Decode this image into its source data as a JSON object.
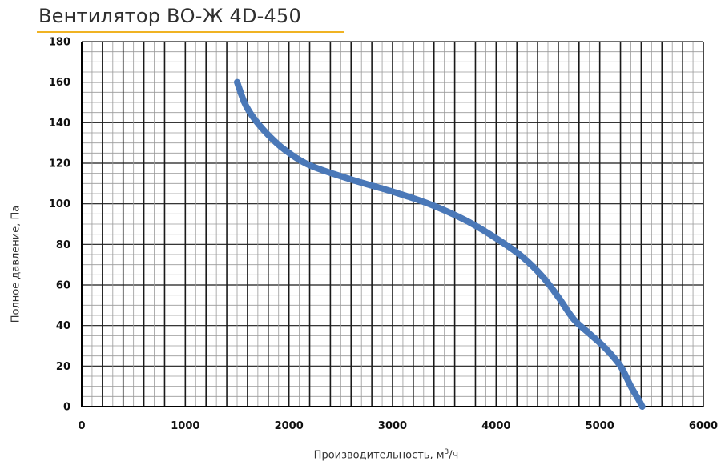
{
  "chart_data": {
    "type": "line",
    "title": "Вентилятор ВО-Ж 4D-450",
    "xlabel": "Производительность, м³/ч",
    "xlabel_parts": {
      "main": "Производительность, м",
      "sup": "3",
      "tail": "/ч"
    },
    "ylabel": "Полное давление, Па",
    "xlim": [
      0,
      6000
    ],
    "ylim": [
      0,
      180
    ],
    "x_ticks": [
      "0",
      "1000",
      "2000",
      "3000",
      "4000",
      "5000",
      "6000"
    ],
    "y_ticks": [
      "0",
      "20",
      "40",
      "60",
      "80",
      "100",
      "120",
      "140",
      "160",
      "180"
    ],
    "grid": true,
    "series": [
      {
        "color": "#4a78b8",
        "x": [
          1500,
          1570,
          1650,
          1780,
          1950,
          2200,
          2600,
          3000,
          3350,
          3700,
          4000,
          4250,
          4450,
          4600,
          4750,
          4900,
          5050,
          5200,
          5300,
          5380,
          5410
        ],
        "y": [
          160,
          150,
          143,
          135,
          127,
          119,
          112,
          106,
          100,
          92,
          83,
          74,
          64,
          54,
          43,
          36,
          29,
          20,
          10,
          3,
          0
        ]
      }
    ]
  },
  "colors": {
    "title_underline": "#f0b323",
    "grid_major": "#1a1a1a",
    "grid_minor": "#9a9a9a",
    "line": "#4a78b8"
  }
}
